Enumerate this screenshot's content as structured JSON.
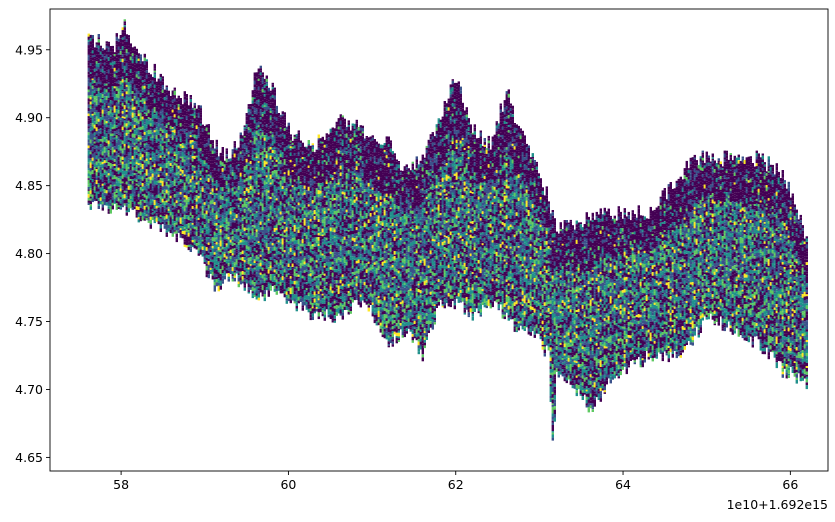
{
  "chart_data": {
    "type": "heatmap",
    "title": "",
    "xlabel": "",
    "ylabel": "",
    "x_offset_label": "1e10+1.692e15",
    "xlim": [
      57.15,
      66.45
    ],
    "ylim": [
      4.64,
      4.98
    ],
    "x_ticks": [
      58,
      60,
      62,
      64,
      66
    ],
    "x_tick_labels": [
      "58",
      "60",
      "62",
      "64",
      "66"
    ],
    "y_ticks": [
      4.65,
      4.7,
      4.75,
      4.8,
      4.85,
      4.9,
      4.95
    ],
    "y_tick_labels": [
      "4.65",
      "4.70",
      "4.75",
      "4.80",
      "4.85",
      "4.90",
      "4.95"
    ],
    "colormap": [
      "#440154",
      "#3b528b",
      "#21918c",
      "#5ec962",
      "#fde725"
    ],
    "grid": false,
    "legend": "none",
    "envelope": {
      "x": [
        57.6,
        57.9,
        58.0,
        58.3,
        58.6,
        58.9,
        59.1,
        59.3,
        59.5,
        59.6,
        59.8,
        60.0,
        60.3,
        60.6,
        60.9,
        61.2,
        61.4,
        61.6,
        61.8,
        62.0,
        62.2,
        62.4,
        62.6,
        62.7,
        62.9,
        63.1,
        63.15,
        63.2,
        63.4,
        63.6,
        63.8,
        64.0,
        64.3,
        64.6,
        64.8,
        65.0,
        65.3,
        65.6,
        65.9,
        66.2
      ],
      "high": [
        4.96,
        4.95,
        4.97,
        4.94,
        4.92,
        4.91,
        4.88,
        4.87,
        4.9,
        4.94,
        4.92,
        4.89,
        4.88,
        4.9,
        4.89,
        4.88,
        4.86,
        4.87,
        4.9,
        4.93,
        4.89,
        4.88,
        4.92,
        4.9,
        4.87,
        4.84,
        4.83,
        4.82,
        4.82,
        4.83,
        4.83,
        4.83,
        4.83,
        4.85,
        4.87,
        4.87,
        4.87,
        4.87,
        4.86,
        4.81
      ],
      "low": [
        4.84,
        4.84,
        4.84,
        4.83,
        4.82,
        4.81,
        4.78,
        4.79,
        4.78,
        4.77,
        4.78,
        4.77,
        4.76,
        4.76,
        4.77,
        4.74,
        4.75,
        4.73,
        4.77,
        4.77,
        4.76,
        4.77,
        4.76,
        4.75,
        4.75,
        4.73,
        4.66,
        4.72,
        4.71,
        4.69,
        4.71,
        4.72,
        4.73,
        4.73,
        4.74,
        4.76,
        4.75,
        4.74,
        4.72,
        4.71
      ]
    }
  }
}
